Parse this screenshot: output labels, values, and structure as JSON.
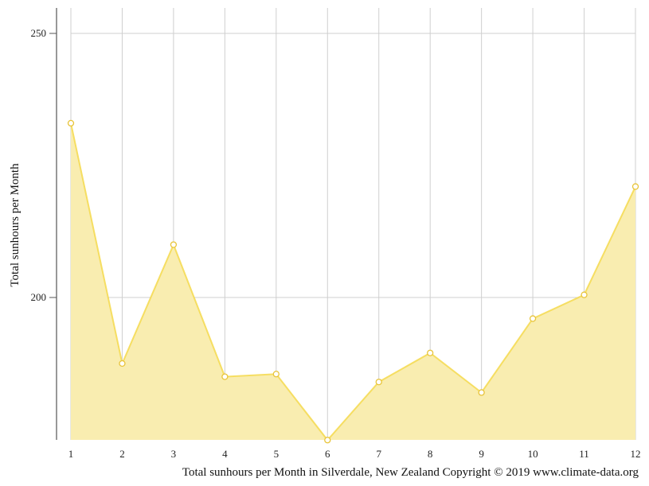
{
  "chart_data": {
    "type": "area",
    "categories": [
      "1",
      "2",
      "3",
      "4",
      "5",
      "6",
      "7",
      "8",
      "9",
      "10",
      "11",
      "12"
    ],
    "series": [
      {
        "values": [
          233,
          187.5,
          210,
          185,
          185.5,
          173,
          184,
          189.5,
          182,
          196,
          200.5,
          221
        ]
      }
    ],
    "ylabel": "Total sunhours per Month",
    "xlabel": "",
    "caption": "Total sunhours per Month in Silverdale, New Zealand Copyright © 2019 www.climate-data.org",
    "ylim": [
      173,
      255
    ],
    "yticks": [
      200,
      250
    ],
    "grid": true,
    "color": "#f5d94e",
    "fill_color": "#f9edb0"
  }
}
